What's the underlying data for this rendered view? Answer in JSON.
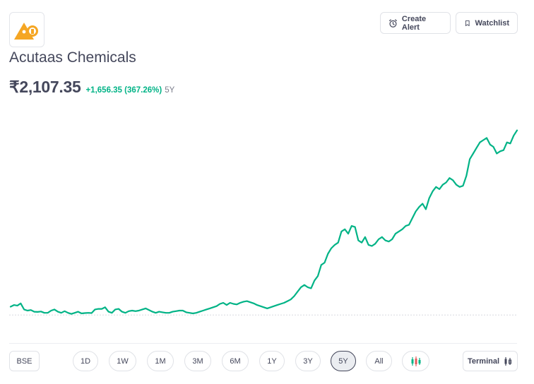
{
  "header": {
    "create_alert_label": "Create Alert",
    "watchlist_label": "Watchlist"
  },
  "stock": {
    "name": "Acutaas Chemicals",
    "price": "₹2,107.35",
    "change": "+1,656.35 (367.26%)",
    "period": "5Y"
  },
  "colors": {
    "line": "#00b386",
    "text": "#44475b",
    "positive": "#00b386",
    "logo_orange": "#f5a623"
  },
  "controls": {
    "exchange": "BSE",
    "ranges": [
      "1D",
      "1W",
      "1M",
      "3M",
      "6M",
      "1Y",
      "3Y",
      "5Y",
      "All"
    ],
    "active_range": "5Y",
    "terminal_label": "Terminal"
  },
  "icons": {
    "alert": "alarm-clock-icon",
    "watchlist": "bookmark-icon",
    "chart_type": "candlestick-icon",
    "terminal": "candlestick-icon"
  },
  "chart_data": {
    "type": "line",
    "title": "",
    "xlabel": "",
    "ylabel": "",
    "ylim": [
      300,
      2150
    ],
    "baseline": 451,
    "grid": false,
    "values": [
      525,
      540,
      535,
      555,
      500,
      490,
      495,
      480,
      478,
      482,
      470,
      470,
      490,
      500,
      480,
      470,
      485,
      470,
      460,
      470,
      480,
      465,
      468,
      470,
      468,
      500,
      505,
      505,
      520,
      480,
      470,
      500,
      505,
      480,
      470,
      485,
      490,
      485,
      490,
      500,
      510,
      495,
      480,
      470,
      480,
      475,
      470,
      470,
      480,
      485,
      490,
      490,
      475,
      470,
      465,
      470,
      480,
      490,
      500,
      510,
      520,
      530,
      550,
      560,
      540,
      560,
      550,
      545,
      560,
      570,
      575,
      565,
      555,
      540,
      530,
      520,
      510,
      520,
      530,
      540,
      550,
      560,
      575,
      590,
      620,
      660,
      700,
      720,
      700,
      690,
      760,
      800,
      900,
      920,
      1000,
      1050,
      1080,
      1100,
      1200,
      1220,
      1180,
      1250,
      1240,
      1120,
      1100,
      1150,
      1080,
      1070,
      1090,
      1130,
      1150,
      1120,
      1110,
      1130,
      1180,
      1200,
      1220,
      1250,
      1260,
      1320,
      1380,
      1420,
      1450,
      1400,
      1500,
      1560,
      1600,
      1580,
      1620,
      1640,
      1680,
      1660,
      1620,
      1600,
      1610,
      1700,
      1850,
      1900,
      1950,
      2000,
      2020,
      2040,
      1980,
      1960,
      1900,
      1920,
      1930,
      2000,
      1990,
      2060,
      2107.35
    ]
  }
}
